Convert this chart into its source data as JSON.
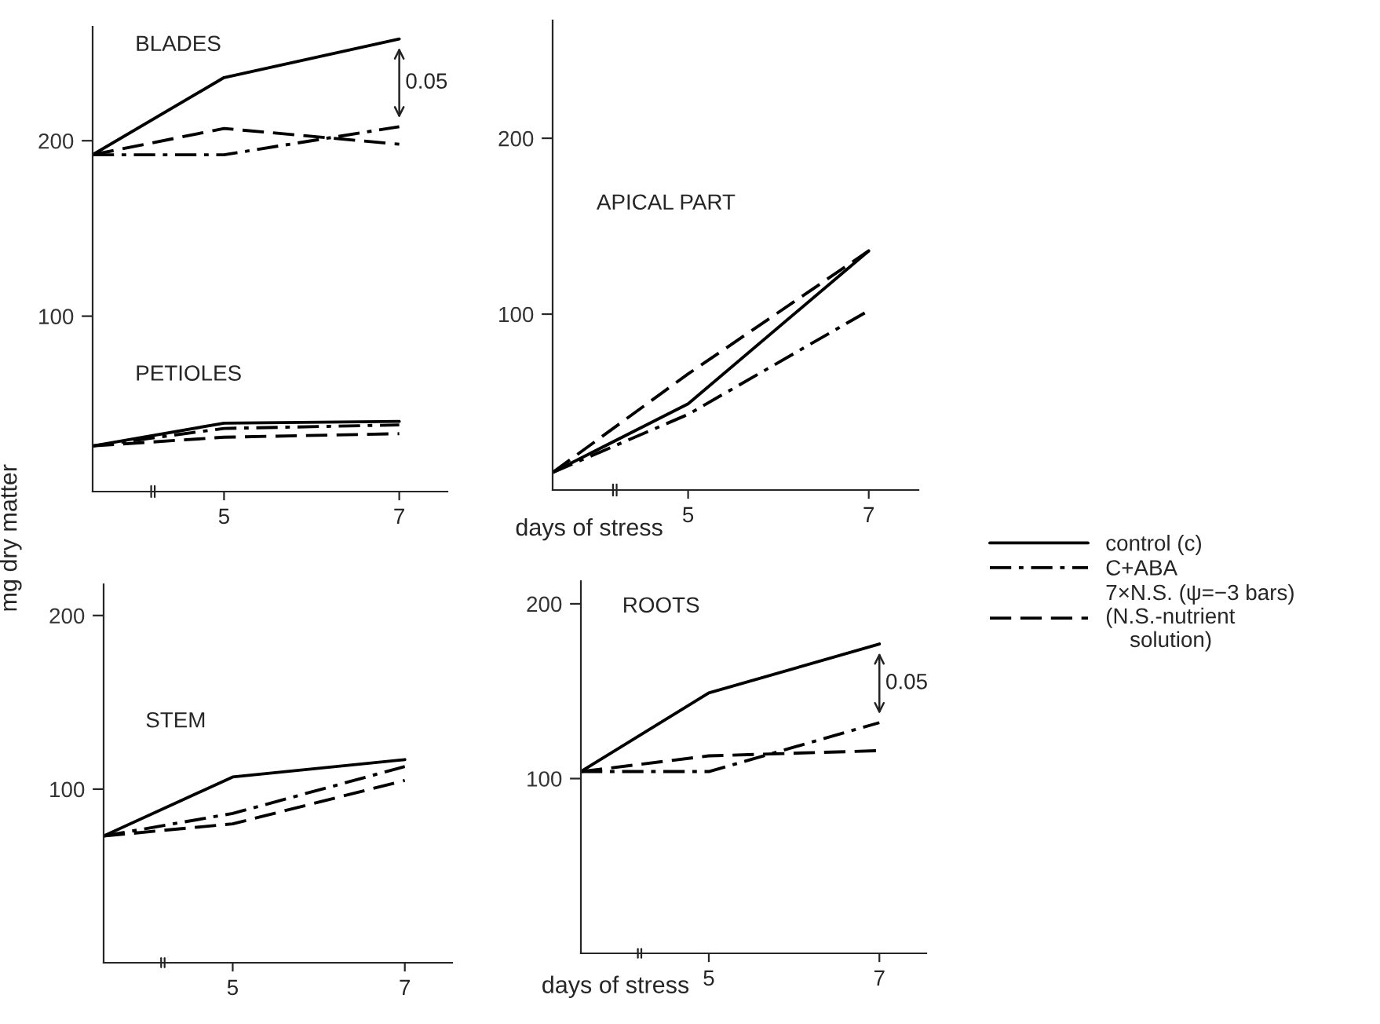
{
  "chart_data": [
    {
      "type": "line",
      "ylabel": "mg dry matter",
      "xlim": [
        3.5,
        7.55
      ],
      "ylim": [
        0,
        265
      ],
      "xticks": [
        5,
        7
      ],
      "yticks": [
        100,
        200
      ],
      "grid": false,
      "legend": "right",
      "marker": "none",
      "annotations": [
        "BLADES",
        "PETIOLES",
        {
          "text": "0.05",
          "x": 7,
          "y": 258
        }
      ],
      "series": [
        {
          "name": "control (c)",
          "color": "#000000",
          "line_style": "solid",
          "x": [
            3.5,
            5,
            7
          ],
          "values": [
            192,
            236,
            258
          ]
        },
        {
          "name": "C+ABA",
          "color": "#000000",
          "line_style": "dashdot",
          "x": [
            3.5,
            5,
            7
          ],
          "values": [
            192,
            192,
            208
          ]
        },
        {
          "name": "7×N.S. (ψ=−3 bars)\n(N.S.-nutrient\n    solution)",
          "color": "#000000",
          "line_style": "dashed",
          "x": [
            3.5,
            5,
            7
          ],
          "values": [
            192,
            207,
            198
          ]
        },
        {
          "color": "#000000",
          "line_style": "solid",
          "x": [
            3.5,
            5,
            7
          ],
          "values": [
            26,
            39,
            40
          ]
        },
        {
          "color": "#000000",
          "line_style": "dashdot",
          "x": [
            3.5,
            5,
            7
          ],
          "values": [
            26,
            36,
            38
          ]
        },
        {
          "color": "#000000",
          "line_style": "dashed",
          "x": [
            3.5,
            5,
            7
          ],
          "values": [
            26,
            31,
            33
          ]
        }
      ]
    },
    {
      "type": "line",
      "xlim": [
        3.5,
        7.55
      ],
      "ylim": [
        0,
        218
      ],
      "xticks": [
        5,
        7
      ],
      "yticks": [
        100,
        200
      ],
      "grid": false,
      "marker": "none",
      "annotations": [
        "STEM"
      ],
      "series": [
        {
          "color": "#000000",
          "line_style": "solid",
          "x": [
            3.5,
            5,
            7
          ],
          "values": [
            73,
            107,
            117
          ]
        },
        {
          "color": "#000000",
          "line_style": "dashdot",
          "x": [
            3.5,
            5,
            7
          ],
          "values": [
            73,
            86,
            113
          ]
        },
        {
          "color": "#000000",
          "line_style": "dashed",
          "x": [
            3.5,
            5,
            7
          ],
          "values": [
            73,
            80,
            105
          ]
        }
      ]
    },
    {
      "type": "line",
      "xlabel": "days of stress",
      "xlim": [
        3.5,
        7.55
      ],
      "ylim": [
        0,
        267
      ],
      "xticks": [
        5,
        7
      ],
      "yticks": [
        100,
        200
      ],
      "grid": false,
      "marker": "none",
      "annotations": [
        "APICAL PART"
      ],
      "series": [
        {
          "color": "#000000",
          "line_style": "solid",
          "x": [
            3.5,
            5,
            7
          ],
          "values": [
            10,
            49,
            136
          ]
        },
        {
          "color": "#000000",
          "line_style": "dashdot",
          "x": [
            3.5,
            5,
            7
          ],
          "values": [
            10,
            43,
            102
          ]
        },
        {
          "color": "#000000",
          "line_style": "dashed",
          "x": [
            3.5,
            5,
            7
          ],
          "values": [
            10,
            66,
            136
          ]
        }
      ]
    },
    {
      "type": "line",
      "xlabel": "days of stress",
      "xlim": [
        3.5,
        7.55
      ],
      "ylim": [
        0,
        213
      ],
      "xticks": [
        5,
        7
      ],
      "yticks": [
        100,
        200
      ],
      "grid": false,
      "marker": "none",
      "annotations": [
        "ROOTS",
        {
          "text": "0.05",
          "x": 7,
          "y": 177
        }
      ],
      "series": [
        {
          "color": "#000000",
          "line_style": "solid",
          "x": [
            3.5,
            5,
            7
          ],
          "values": [
            104,
            149,
            177
          ]
        },
        {
          "color": "#000000",
          "line_style": "dashdot",
          "x": [
            3.5,
            5,
            7
          ],
          "values": [
            104,
            104,
            132
          ]
        },
        {
          "color": "#000000",
          "line_style": "dashed",
          "x": [
            3.5,
            5,
            7
          ],
          "values": [
            104,
            113,
            116
          ]
        }
      ]
    }
  ]
}
